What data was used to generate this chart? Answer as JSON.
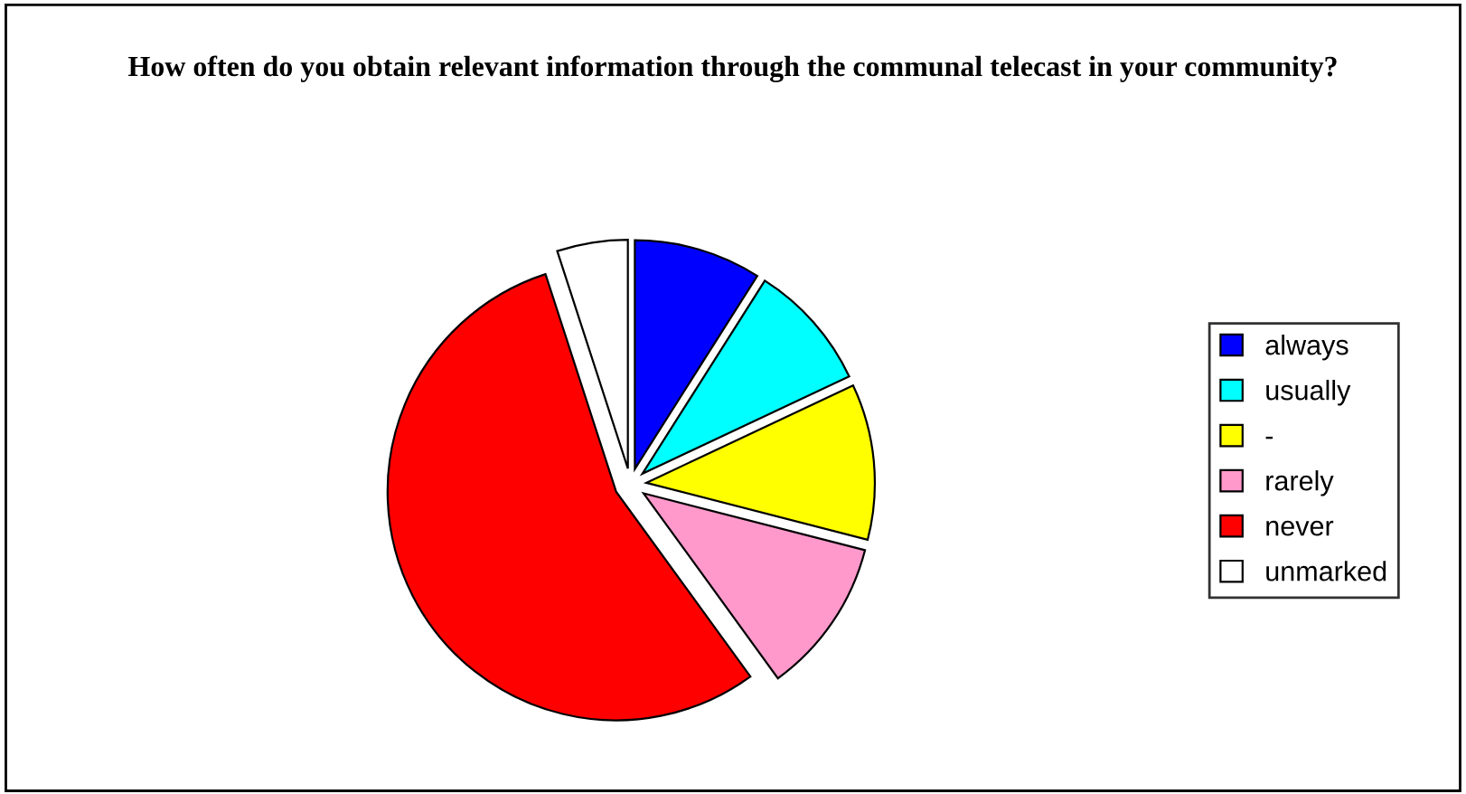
{
  "chart_data": {
    "type": "pie",
    "title": "How often do you obtain relevant information through the communal telecast in your community?",
    "categories": [
      "always",
      "usually",
      "-",
      "rarely",
      "never",
      "unmarked"
    ],
    "values": [
      9,
      9,
      11,
      11,
      55,
      5
    ],
    "colors": [
      "#0000ff",
      "#00ffff",
      "#ffff00",
      "#ff99cc",
      "#ff0000",
      "#ffffff"
    ],
    "legend": "right"
  }
}
